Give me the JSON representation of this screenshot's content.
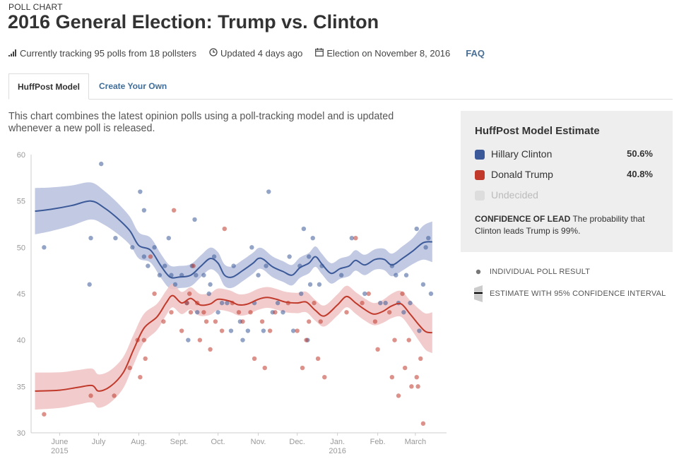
{
  "header": {
    "eyebrow": "POLL CHART",
    "title": "2016 General Election: Trump vs. Clinton"
  },
  "meta": {
    "tracking": "Currently tracking 95 polls from 18 pollsters",
    "updated": "Updated 4 days ago",
    "election": "Election on November 8, 2016",
    "faq": "FAQ",
    "icons": [
      "bar-signal-icon",
      "clock-icon",
      "calendar-icon"
    ]
  },
  "tabs": [
    {
      "label": "HuffPost Model",
      "active": true
    },
    {
      "label": "Create Your Own",
      "active": false
    }
  ],
  "description": "This chart combines the latest opinion polls using a poll-tracking model and is updated whenever a new poll is released.",
  "estimate": {
    "title": "HuffPost Model Estimate",
    "rows": [
      {
        "name": "Hillary Clinton",
        "value": "50.6%",
        "color": "#3b5998"
      },
      {
        "name": "Donald Trump",
        "value": "40.8%",
        "color": "#c0392b"
      },
      {
        "name": "Undecided",
        "value": "",
        "color": "#dddddd"
      }
    ],
    "confidence_label": "CONFIDENCE OF LEAD",
    "confidence_text": "The probability that Clinton leads Trump is 99%."
  },
  "legend": {
    "poll": "INDIVIDUAL POLL RESULT",
    "estimate": "ESTIMATE WITH 95% CONFIDENCE INTERVAL"
  },
  "chart_data": {
    "type": "line",
    "xlabel": "",
    "ylabel": "",
    "ylim": [
      30,
      60
    ],
    "yticks": [
      30,
      35,
      40,
      45,
      50,
      55,
      60
    ],
    "xlim": [
      "2015-05-10",
      "2016-03-25"
    ],
    "xticks": [
      {
        "date": "2015-06-01",
        "label": "June",
        "sub": "2015"
      },
      {
        "date": "2015-07-01",
        "label": "July",
        "sub": ""
      },
      {
        "date": "2015-08-01",
        "label": "Aug.",
        "sub": ""
      },
      {
        "date": "2015-09-01",
        "label": "Sept.",
        "sub": ""
      },
      {
        "date": "2015-10-01",
        "label": "Oct.",
        "sub": ""
      },
      {
        "date": "2015-11-01",
        "label": "Nov.",
        "sub": ""
      },
      {
        "date": "2015-12-01",
        "label": "Dec.",
        "sub": ""
      },
      {
        "date": "2016-01-01",
        "label": "Jan.",
        "sub": "2016"
      },
      {
        "date": "2016-02-01",
        "label": "Feb.",
        "sub": ""
      },
      {
        "date": "2016-03-01",
        "label": "March",
        "sub": ""
      }
    ],
    "grid": false,
    "series": [
      {
        "name": "Hillary Clinton",
        "color": "#3b5998",
        "band_color": "#b7c1de",
        "estimate": [
          [
            "2015-05-13",
            53.9
          ],
          [
            "2015-05-25",
            54.1
          ],
          [
            "2015-06-10",
            54.5
          ],
          [
            "2015-06-25",
            55.0
          ],
          [
            "2015-07-05",
            54.3
          ],
          [
            "2015-07-15",
            53.2
          ],
          [
            "2015-07-25",
            51.8
          ],
          [
            "2015-08-01",
            50.2
          ],
          [
            "2015-08-10",
            49.7
          ],
          [
            "2015-08-18",
            48.0
          ],
          [
            "2015-08-25",
            46.8
          ],
          [
            "2015-09-01",
            46.8
          ],
          [
            "2015-09-10",
            47.0
          ],
          [
            "2015-09-18",
            48.0
          ],
          [
            "2015-09-25",
            48.8
          ],
          [
            "2015-10-01",
            48.3
          ],
          [
            "2015-10-06",
            47.0
          ],
          [
            "2015-10-12",
            46.8
          ],
          [
            "2015-10-20",
            47.5
          ],
          [
            "2015-10-28",
            48.3
          ],
          [
            "2015-11-01",
            48.8
          ],
          [
            "2015-11-05",
            48.7
          ],
          [
            "2015-11-12",
            47.9
          ],
          [
            "2015-11-20",
            47.4
          ],
          [
            "2015-11-27",
            47.0
          ],
          [
            "2015-12-03",
            47.8
          ],
          [
            "2015-12-10",
            48.3
          ],
          [
            "2015-12-15",
            49.0
          ],
          [
            "2015-12-20",
            48.2
          ],
          [
            "2015-12-27",
            47.2
          ],
          [
            "2016-01-03",
            47.7
          ],
          [
            "2016-01-10",
            48.0
          ],
          [
            "2016-01-15",
            48.6
          ],
          [
            "2016-01-22",
            48.1
          ],
          [
            "2016-01-30",
            48.7
          ],
          [
            "2016-02-06",
            48.7
          ],
          [
            "2016-02-12",
            48.1
          ],
          [
            "2016-02-20",
            48.8
          ],
          [
            "2016-02-28",
            49.6
          ],
          [
            "2016-03-07",
            50.5
          ],
          [
            "2016-03-14",
            50.6
          ]
        ],
        "band": [
          [
            "2015-05-13",
            2.5
          ],
          [
            "2015-06-25",
            2.0
          ],
          [
            "2015-08-01",
            1.4
          ],
          [
            "2015-09-01",
            1.2
          ],
          [
            "2015-12-01",
            1.1
          ],
          [
            "2016-02-01",
            1.1
          ],
          [
            "2016-02-28",
            1.4
          ],
          [
            "2016-03-14",
            2.2
          ]
        ],
        "polls": [
          [
            "2015-05-20",
            50
          ],
          [
            "2015-06-24",
            46
          ],
          [
            "2015-06-25",
            51
          ],
          [
            "2015-07-03",
            59
          ],
          [
            "2015-07-14",
            51
          ],
          [
            "2015-07-27",
            50
          ],
          [
            "2015-08-02",
            56
          ],
          [
            "2015-08-05",
            54
          ],
          [
            "2015-08-05",
            49
          ],
          [
            "2015-08-08",
            48
          ],
          [
            "2015-08-13",
            50
          ],
          [
            "2015-08-17",
            47
          ],
          [
            "2015-08-21",
            48
          ],
          [
            "2015-08-24",
            51
          ],
          [
            "2015-08-26",
            47
          ],
          [
            "2015-08-29",
            46
          ],
          [
            "2015-09-03",
            47
          ],
          [
            "2015-09-07",
            44
          ],
          [
            "2015-09-08",
            40
          ],
          [
            "2015-09-11",
            48
          ],
          [
            "2015-09-13",
            53
          ],
          [
            "2015-09-14",
            47
          ],
          [
            "2015-09-15",
            43
          ],
          [
            "2015-09-20",
            47
          ],
          [
            "2015-09-24",
            45
          ],
          [
            "2015-09-25",
            46
          ],
          [
            "2015-09-28",
            49
          ],
          [
            "2015-10-01",
            43
          ],
          [
            "2015-10-04",
            44
          ],
          [
            "2015-10-08",
            44
          ],
          [
            "2015-10-11",
            41
          ],
          [
            "2015-10-13",
            48
          ],
          [
            "2015-10-18",
            42
          ],
          [
            "2015-10-20",
            40
          ],
          [
            "2015-10-24",
            41
          ],
          [
            "2015-10-27",
            50
          ],
          [
            "2015-10-29",
            44
          ],
          [
            "2015-11-01",
            47
          ],
          [
            "2015-11-05",
            41
          ],
          [
            "2015-11-07",
            48
          ],
          [
            "2015-11-09",
            56
          ],
          [
            "2015-11-12",
            43
          ],
          [
            "2015-11-16",
            44
          ],
          [
            "2015-11-20",
            43
          ],
          [
            "2015-11-25",
            49
          ],
          [
            "2015-11-28",
            41
          ],
          [
            "2015-12-03",
            48
          ],
          [
            "2015-12-04",
            45
          ],
          [
            "2015-12-06",
            52
          ],
          [
            "2015-12-09",
            40
          ],
          [
            "2015-12-10",
            49
          ],
          [
            "2015-12-11",
            46
          ],
          [
            "2015-12-13",
            51
          ],
          [
            "2015-12-18",
            46
          ],
          [
            "2015-12-20",
            48
          ],
          [
            "2016-01-04",
            47
          ],
          [
            "2016-01-12",
            51
          ],
          [
            "2016-01-22",
            45
          ],
          [
            "2016-02-03",
            44
          ],
          [
            "2016-02-07",
            44
          ],
          [
            "2016-02-12",
            48
          ],
          [
            "2016-02-15",
            47
          ],
          [
            "2016-02-17",
            44
          ],
          [
            "2016-02-21",
            43
          ],
          [
            "2016-02-23",
            47
          ],
          [
            "2016-02-26",
            44
          ],
          [
            "2016-03-02",
            52
          ],
          [
            "2016-03-04",
            41
          ],
          [
            "2016-03-07",
            46
          ],
          [
            "2016-03-09",
            50
          ],
          [
            "2016-03-11",
            51
          ],
          [
            "2016-03-13",
            45
          ]
        ]
      },
      {
        "name": "Donald Trump",
        "color": "#c0392b",
        "band_color": "#f0c3c3",
        "estimate": [
          [
            "2015-05-13",
            34.5
          ],
          [
            "2015-06-01",
            34.6
          ],
          [
            "2015-06-15",
            34.9
          ],
          [
            "2015-06-26",
            35.1
          ],
          [
            "2015-07-01",
            34.5
          ],
          [
            "2015-07-10",
            35.0
          ],
          [
            "2015-07-20",
            36.5
          ],
          [
            "2015-07-28",
            39.0
          ],
          [
            "2015-08-05",
            41.3
          ],
          [
            "2015-08-15",
            42.5
          ],
          [
            "2015-08-22",
            44.0
          ],
          [
            "2015-08-27",
            44.8
          ],
          [
            "2015-09-03",
            44.0
          ],
          [
            "2015-09-10",
            44.5
          ],
          [
            "2015-09-17",
            43.8
          ],
          [
            "2015-09-25",
            43.9
          ],
          [
            "2015-10-01",
            44.4
          ],
          [
            "2015-10-10",
            44.2
          ],
          [
            "2015-10-17",
            43.8
          ],
          [
            "2015-10-24",
            43.9
          ],
          [
            "2015-11-01",
            44.4
          ],
          [
            "2015-11-08",
            44.6
          ],
          [
            "2015-11-15",
            44.4
          ],
          [
            "2015-11-22",
            44.1
          ],
          [
            "2015-12-01",
            44.0
          ],
          [
            "2015-12-08",
            44.1
          ],
          [
            "2015-12-15",
            43.2
          ],
          [
            "2015-12-22",
            42.6
          ],
          [
            "2016-01-01",
            43.8
          ],
          [
            "2016-01-08",
            44.7
          ],
          [
            "2016-01-15",
            44.0
          ],
          [
            "2016-01-22",
            43.3
          ],
          [
            "2016-01-29",
            42.8
          ],
          [
            "2016-02-05",
            43.1
          ],
          [
            "2016-02-12",
            43.7
          ],
          [
            "2016-02-19",
            43.9
          ],
          [
            "2016-02-26",
            42.8
          ],
          [
            "2016-03-04",
            41.6
          ],
          [
            "2016-03-09",
            40.9
          ],
          [
            "2016-03-14",
            40.8
          ]
        ],
        "band": [
          [
            "2015-05-13",
            2.0
          ],
          [
            "2015-07-01",
            1.8
          ],
          [
            "2015-08-01",
            1.6
          ],
          [
            "2015-09-01",
            1.2
          ],
          [
            "2015-12-01",
            1.1
          ],
          [
            "2016-02-01",
            1.2
          ],
          [
            "2016-02-28",
            1.5
          ],
          [
            "2016-03-14",
            2.2
          ]
        ],
        "polls": [
          [
            "2015-05-20",
            32
          ],
          [
            "2015-06-25",
            34
          ],
          [
            "2015-07-13",
            34
          ],
          [
            "2015-07-25",
            37
          ],
          [
            "2015-07-31",
            40
          ],
          [
            "2015-08-02",
            36
          ],
          [
            "2015-08-05",
            40
          ],
          [
            "2015-08-06",
            38
          ],
          [
            "2015-08-10",
            49
          ],
          [
            "2015-08-13",
            45
          ],
          [
            "2015-08-20",
            42
          ],
          [
            "2015-08-26",
            43
          ],
          [
            "2015-08-28",
            54
          ],
          [
            "2015-09-03",
            41
          ],
          [
            "2015-09-07",
            44
          ],
          [
            "2015-09-09",
            45
          ],
          [
            "2015-09-10",
            43
          ],
          [
            "2015-09-12",
            48
          ],
          [
            "2015-09-15",
            44
          ],
          [
            "2015-09-17",
            40
          ],
          [
            "2015-09-20",
            43
          ],
          [
            "2015-09-22",
            42
          ],
          [
            "2015-09-25",
            39
          ],
          [
            "2015-09-29",
            42
          ],
          [
            "2015-10-04",
            41
          ],
          [
            "2015-10-06",
            52
          ],
          [
            "2015-10-12",
            44
          ],
          [
            "2015-10-17",
            43
          ],
          [
            "2015-10-20",
            42
          ],
          [
            "2015-10-26",
            43
          ],
          [
            "2015-10-29",
            38
          ],
          [
            "2015-11-04",
            42
          ],
          [
            "2015-11-06",
            37
          ],
          [
            "2015-11-10",
            41
          ],
          [
            "2015-11-14",
            43
          ],
          [
            "2015-11-24",
            44
          ],
          [
            "2015-12-01",
            41
          ],
          [
            "2015-12-05",
            37
          ],
          [
            "2015-12-08",
            40
          ],
          [
            "2015-12-10",
            42
          ],
          [
            "2015-12-14",
            44
          ],
          [
            "2015-12-17",
            38
          ],
          [
            "2015-12-19",
            42
          ],
          [
            "2015-12-22",
            36
          ],
          [
            "2016-01-08",
            43
          ],
          [
            "2016-01-15",
            51
          ],
          [
            "2016-01-20",
            44
          ],
          [
            "2016-01-25",
            45
          ],
          [
            "2016-01-30",
            42
          ],
          [
            "2016-02-01",
            39
          ],
          [
            "2016-02-10",
            43
          ],
          [
            "2016-02-12",
            36
          ],
          [
            "2016-02-14",
            40
          ],
          [
            "2016-02-17",
            34
          ],
          [
            "2016-02-20",
            45
          ],
          [
            "2016-02-22",
            37
          ],
          [
            "2016-02-25",
            40
          ],
          [
            "2016-02-27",
            35
          ],
          [
            "2016-03-02",
            36
          ],
          [
            "2016-03-03",
            35
          ],
          [
            "2016-03-05",
            38
          ],
          [
            "2016-03-07",
            31
          ]
        ]
      }
    ]
  }
}
